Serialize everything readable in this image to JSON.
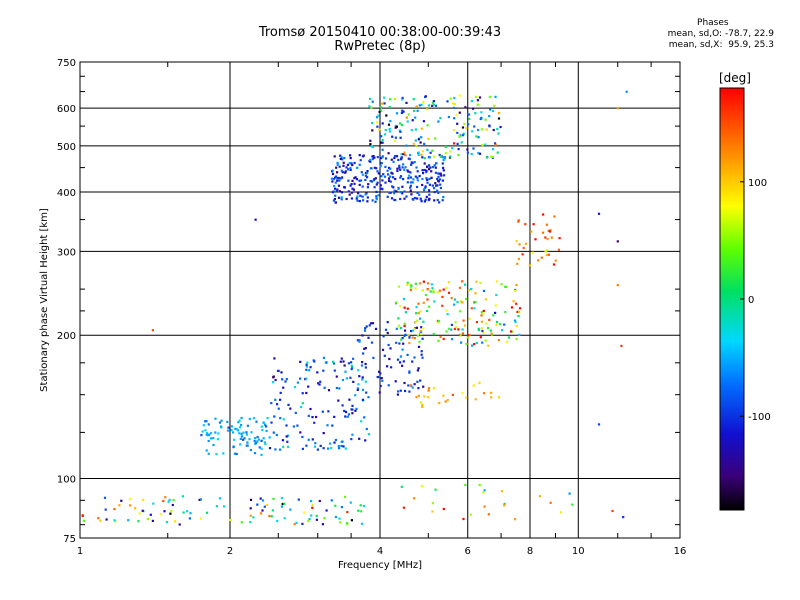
{
  "title": {
    "line1": "Tromsø 20150410 00:38:00-00:39:43",
    "line2": "RwPretec (8p)"
  },
  "phases": {
    "title": "Phases",
    "o_stats": "mean, sd,O: -78.7, 22.9",
    "x_stats": "mean, sd,X:  95.9, 25.3"
  },
  "colorbar": {
    "unit_label": "[deg]",
    "ticks": [
      {
        "value": 100,
        "label": "100"
      },
      {
        "value": 0,
        "label": "0"
      },
      {
        "value": -100,
        "label": "-100"
      }
    ],
    "range": [
      -180,
      180
    ]
  },
  "chart_data": {
    "type": "scatter",
    "title": "Tromsø 20150410 00:38:00-00:39:43",
    "subtitle": "RwPretec (8p)",
    "xlabel": "Frequency [MHz]",
    "ylabel": "Stationary phase Virtual Height [km]",
    "xscale": "log",
    "yscale": "log",
    "xlim": [
      1,
      16
    ],
    "ylim": [
      75,
      750
    ],
    "xticks": [
      1,
      2,
      4,
      6,
      8,
      10,
      16
    ],
    "xtick_labels": [
      "1",
      "2",
      "4",
      "6",
      "8",
      "10",
      "16"
    ],
    "yticks": [
      75,
      100,
      200,
      300,
      400,
      500,
      600,
      750
    ],
    "ytick_labels": [
      "75",
      "100",
      "200",
      "300",
      "400",
      "500",
      "600",
      "750"
    ],
    "grid": true,
    "color_encoding": "phase [deg]",
    "clusters": [
      {
        "x_range": [
          1.0,
          3.8
        ],
        "y_range": [
          80,
          92
        ],
        "count": 110,
        "phase_mean": -20,
        "phase_sd": 90
      },
      {
        "x_range": [
          1.75,
          2.4
        ],
        "y_range": [
          112,
          135
        ],
        "count": 90,
        "phase_mean": -50,
        "phase_sd": 15
      },
      {
        "x_range": [
          2.4,
          3.8
        ],
        "y_range": [
          115,
          180
        ],
        "count": 160,
        "phase_mean": -85,
        "phase_sd": 35
      },
      {
        "x_range": [
          3.6,
          4.9
        ],
        "y_range": [
          150,
          215
        ],
        "count": 90,
        "phase_mean": -105,
        "phase_sd": 25
      },
      {
        "x_range": [
          4.3,
          7.7
        ],
        "y_range": [
          190,
          260
        ],
        "count": 180,
        "phase_mean": 60,
        "phase_sd": 80
      },
      {
        "x_range": [
          7.5,
          9.2
        ],
        "y_range": [
          280,
          360
        ],
        "count": 35,
        "phase_mean": 140,
        "phase_sd": 30
      },
      {
        "x_range": [
          3.2,
          5.4
        ],
        "y_range": [
          380,
          480
        ],
        "count": 320,
        "phase_mean": -100,
        "phase_sd": 25
      },
      {
        "x_range": [
          3.8,
          7.0
        ],
        "y_range": [
          470,
          640
        ],
        "count": 200,
        "phase_mean": -20,
        "phase_sd": 80
      },
      {
        "x_range": [
          4.6,
          7.0
        ],
        "y_range": [
          140,
          160
        ],
        "count": 25,
        "phase_mean": 110,
        "phase_sd": 20
      },
      {
        "x_range": [
          4.0,
          12.0
        ],
        "y_range": [
          82,
          98
        ],
        "count": 25,
        "phase_mean": 60,
        "phase_sd": 100
      }
    ],
    "isolated_points": [
      {
        "x": 1.4,
        "y": 205,
        "phase": 150
      },
      {
        "x": 2.25,
        "y": 350,
        "phase": -120
      },
      {
        "x": 11.0,
        "y": 360,
        "phase": -110
      },
      {
        "x": 12.0,
        "y": 315,
        "phase": -150
      },
      {
        "x": 12.5,
        "y": 650,
        "phase": -60
      },
      {
        "x": 12.0,
        "y": 600,
        "phase": 120
      },
      {
        "x": 12.2,
        "y": 190,
        "phase": 160
      },
      {
        "x": 12.3,
        "y": 83,
        "phase": -100
      },
      {
        "x": 9.6,
        "y": 93,
        "phase": -60
      },
      {
        "x": 11.0,
        "y": 130,
        "phase": -90
      },
      {
        "x": 12.0,
        "y": 255,
        "phase": 130
      }
    ]
  }
}
